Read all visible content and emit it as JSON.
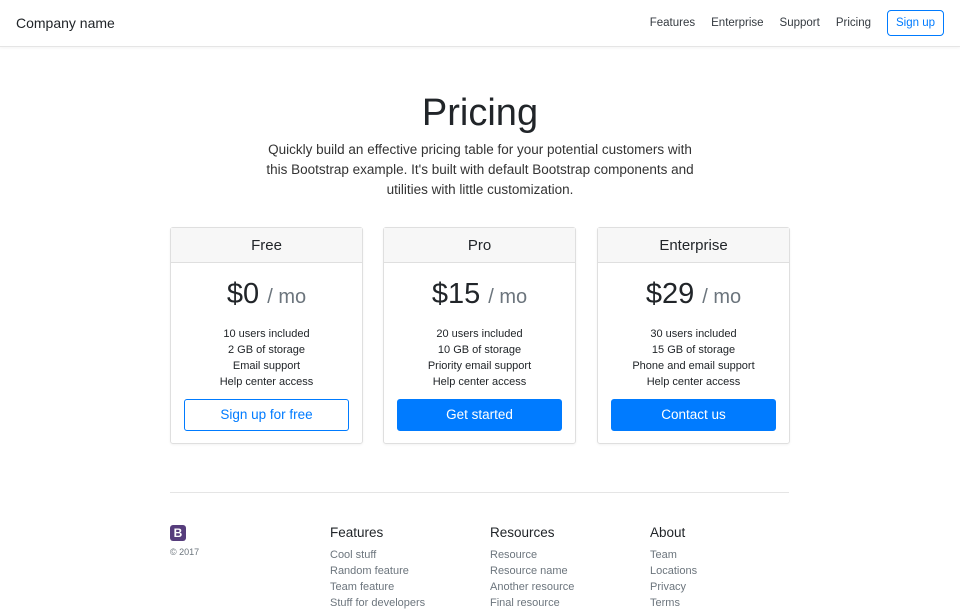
{
  "header": {
    "brand": "Company name",
    "links": [
      "Features",
      "Enterprise",
      "Support",
      "Pricing"
    ],
    "signup": "Sign up"
  },
  "hero": {
    "title": "Pricing",
    "lead": "Quickly build an effective pricing table for your potential customers with this Bootstrap example. It's built with default Bootstrap components and utilities with little customization."
  },
  "plans": [
    {
      "name": "Free",
      "price": "$0",
      "period": "/ mo",
      "features": [
        "10 users included",
        "2 GB of storage",
        "Email support",
        "Help center access"
      ],
      "cta": "Sign up for free"
    },
    {
      "name": "Pro",
      "price": "$15",
      "period": "/ mo",
      "features": [
        "20 users included",
        "10 GB of storage",
        "Priority email support",
        "Help center access"
      ],
      "cta": "Get started"
    },
    {
      "name": "Enterprise",
      "price": "$29",
      "period": "/ mo",
      "features": [
        "30 users included",
        "15 GB of storage",
        "Phone and email support",
        "Help center access"
      ],
      "cta": "Contact us"
    }
  ],
  "footer": {
    "logo": "B",
    "copyright": "© 2017",
    "columns": [
      {
        "title": "Features",
        "links": [
          "Cool stuff",
          "Random feature",
          "Team feature",
          "Stuff for developers"
        ]
      },
      {
        "title": "Resources",
        "links": [
          "Resource",
          "Resource name",
          "Another resource",
          "Final resource"
        ]
      },
      {
        "title": "About",
        "links": [
          "Team",
          "Locations",
          "Privacy",
          "Terms"
        ]
      }
    ]
  },
  "colors": {
    "primary": "#007bff",
    "logo": "#563d7c"
  }
}
